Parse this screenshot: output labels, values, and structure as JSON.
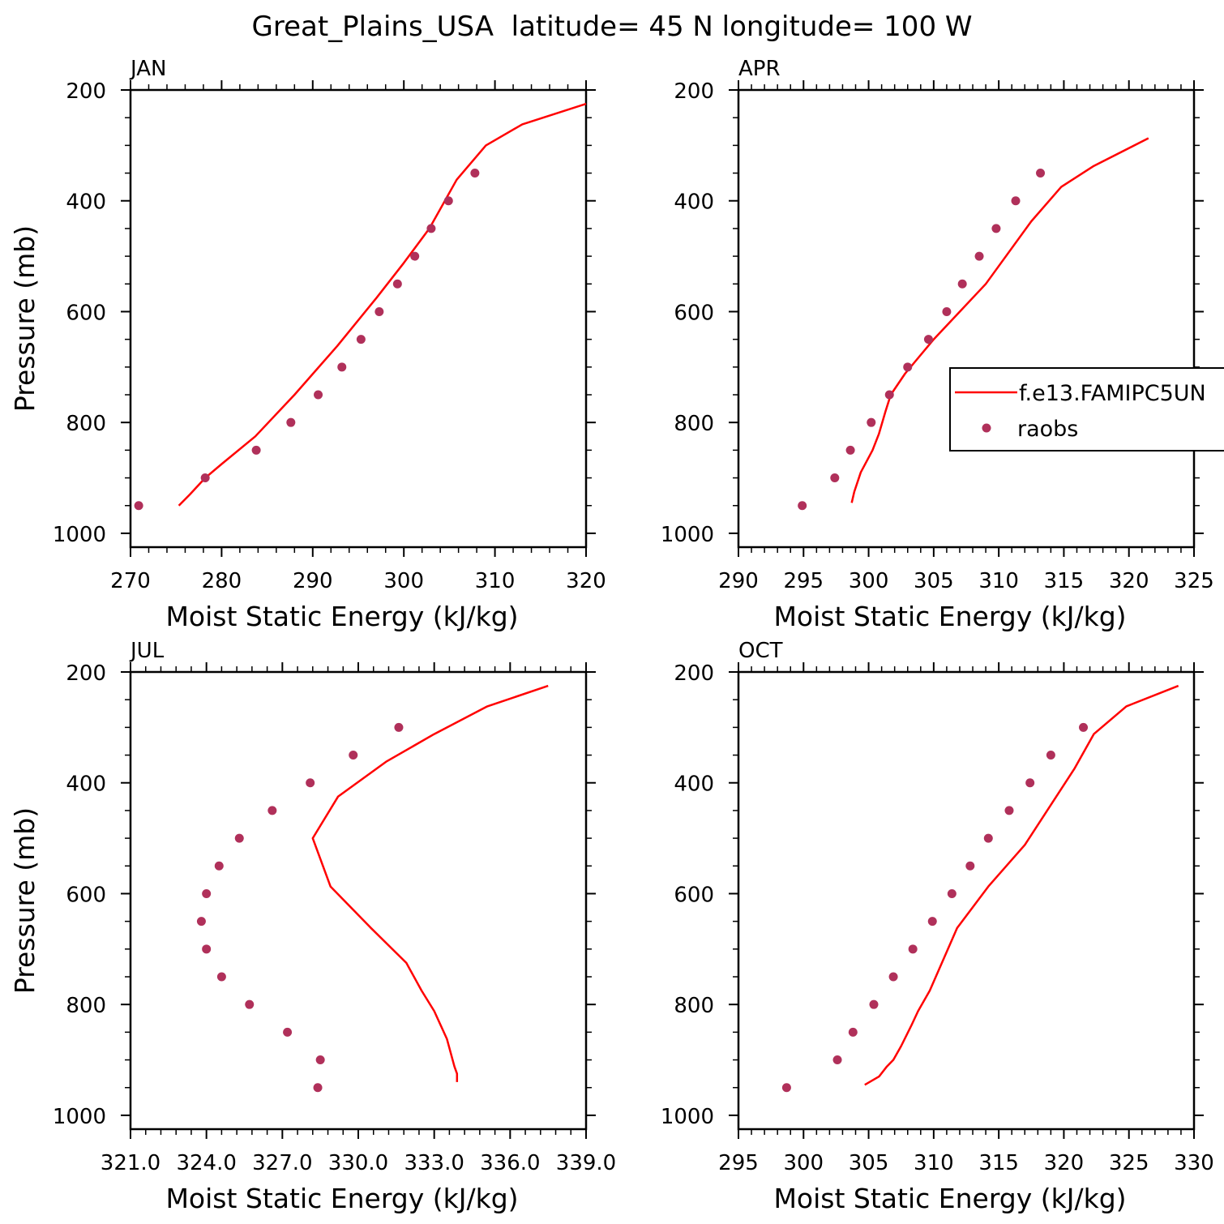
{
  "title": "Great_Plains_USA  latitude= 45 N longitude= 100 W",
  "colors": {
    "model": "#ff0000",
    "obs": "#b0305a",
    "axis": "#000000"
  },
  "legend": {
    "model_label": "f.e13.FAMIPC5UN",
    "obs_label": "raobs",
    "placement": "right-of-APR-panel"
  },
  "chart_data": [
    {
      "type": "line",
      "panel": "JAN",
      "xlabel": "Moist Static Energy (kJ/kg)",
      "ylabel": "Pressure (mb)",
      "xlim": [
        270,
        320
      ],
      "ylim": [
        1025,
        200
      ],
      "xticks": [
        270,
        280,
        290,
        300,
        310,
        320
      ],
      "xtick_labels": [
        "270",
        "280",
        "290",
        "300",
        "310",
        "320"
      ],
      "yticks": [
        200,
        400,
        600,
        800,
        1000
      ],
      "ytick_labels": [
        "200",
        "400",
        "600",
        "800",
        "1000"
      ],
      "series": [
        {
          "name": "f.e13.FAMIPC5UN",
          "kind": "line",
          "x": [
            275.3,
            276.5,
            278.2,
            280.0,
            283.7,
            288.0,
            292.7,
            297.0,
            300.0,
            302.8,
            305.8,
            309.0,
            313.0,
            320.0
          ],
          "y": [
            950,
            930,
            900,
            875,
            825,
            750,
            662,
            575,
            512,
            450,
            362,
            300,
            262,
            225
          ]
        },
        {
          "name": "raobs",
          "kind": "scatter",
          "x": [
            270.9,
            278.2,
            283.8,
            287.6,
            290.6,
            293.2,
            295.3,
            297.3,
            299.3,
            301.2,
            303.0,
            304.9,
            307.8
          ],
          "y": [
            950,
            900,
            850,
            800,
            750,
            700,
            650,
            600,
            550,
            500,
            450,
            400,
            350
          ]
        }
      ]
    },
    {
      "type": "line",
      "panel": "APR",
      "xlabel": "Moist Static Energy (kJ/kg)",
      "ylabel": "",
      "xlim": [
        290,
        325
      ],
      "ylim": [
        1025,
        200
      ],
      "xticks": [
        290,
        295,
        300,
        305,
        310,
        315,
        320,
        325
      ],
      "xtick_labels": [
        "290",
        "295",
        "300",
        "305",
        "310",
        "315",
        "320",
        "325"
      ],
      "yticks": [
        200,
        400,
        600,
        800,
        1000
      ],
      "ytick_labels": [
        "200",
        "400",
        "600",
        "800",
        "1000"
      ],
      "series": [
        {
          "name": "f.e13.FAMIPC5UN",
          "kind": "line",
          "x": [
            298.7,
            298.9,
            299.4,
            300.3,
            300.8,
            301.3,
            301.7,
            302.8,
            305.0,
            307.0,
            309.0,
            312.5,
            314.8,
            317.3,
            321.5
          ],
          "y": [
            945,
            925,
            890,
            850,
            820,
            780,
            750,
            712,
            650,
            600,
            550,
            437,
            375,
            337,
            287
          ]
        },
        {
          "name": "raobs",
          "kind": "scatter",
          "x": [
            294.9,
            297.4,
            298.6,
            300.2,
            301.6,
            303.0,
            304.6,
            306.0,
            307.2,
            308.5,
            309.8,
            311.3,
            313.2
          ],
          "y": [
            950,
            900,
            850,
            800,
            750,
            700,
            650,
            600,
            550,
            500,
            450,
            400,
            350
          ]
        }
      ]
    },
    {
      "type": "line",
      "panel": "JUL",
      "xlabel": "Moist Static Energy (kJ/kg)",
      "ylabel": "Pressure (mb)",
      "xlim": [
        321,
        339
      ],
      "ylim": [
        1025,
        200
      ],
      "xticks": [
        321,
        324,
        327,
        330,
        333,
        336,
        339
      ],
      "xtick_labels": [
        "321.0",
        "324.0",
        "327.0",
        "330.0",
        "333.0",
        "336.0",
        "339.0"
      ],
      "yticks": [
        200,
        400,
        600,
        800,
        1000
      ],
      "ytick_labels": [
        "200",
        "400",
        "600",
        "800",
        "1000"
      ],
      "series": [
        {
          "name": "f.e13.FAMIPC5UN",
          "kind": "line",
          "x": [
            333.9,
            333.9,
            333.8,
            333.5,
            333.0,
            332.5,
            331.9,
            330.5,
            328.9,
            328.2,
            329.2,
            331.1,
            333.0,
            335.1,
            337.5
          ],
          "y": [
            940,
            925,
            912,
            862,
            812,
            775,
            725,
            662,
            587,
            500,
            425,
            362,
            312,
            262,
            225
          ]
        },
        {
          "name": "raobs",
          "kind": "scatter",
          "x": [
            328.4,
            328.5,
            327.2,
            325.7,
            324.6,
            324.0,
            323.8,
            324.0,
            324.5,
            325.3,
            326.6,
            328.1,
            329.8,
            331.6
          ],
          "y": [
            950,
            900,
            850,
            800,
            750,
            700,
            650,
            600,
            550,
            500,
            450,
            400,
            350,
            300
          ]
        }
      ]
    },
    {
      "type": "line",
      "panel": "OCT",
      "xlabel": "Moist Static Energy (kJ/kg)",
      "ylabel": "",
      "xlim": [
        295,
        330
      ],
      "ylim": [
        1025,
        200
      ],
      "xticks": [
        295,
        300,
        305,
        310,
        315,
        320,
        325,
        330
      ],
      "xtick_labels": [
        "295",
        "300",
        "305",
        "310",
        "315",
        "320",
        "325",
        "330"
      ],
      "yticks": [
        200,
        400,
        600,
        800,
        1000
      ],
      "ytick_labels": [
        "200",
        "400",
        "600",
        "800",
        "1000"
      ],
      "series": [
        {
          "name": "f.e13.FAMIPC5UN",
          "kind": "line",
          "x": [
            304.7,
            305.8,
            306.4,
            306.9,
            307.5,
            308.3,
            308.8,
            309.7,
            311.8,
            314.2,
            317.0,
            320.8,
            322.3,
            324.8,
            328.8
          ],
          "y": [
            945,
            930,
            912,
            900,
            875,
            837,
            812,
            775,
            662,
            587,
            512,
            375,
            312,
            262,
            225
          ]
        },
        {
          "name": "raobs",
          "kind": "scatter",
          "x": [
            298.7,
            302.6,
            303.8,
            305.4,
            306.9,
            308.4,
            309.9,
            311.4,
            312.8,
            314.2,
            315.8,
            317.4,
            319.0,
            321.5
          ],
          "y": [
            950,
            900,
            850,
            800,
            750,
            700,
            650,
            600,
            550,
            500,
            450,
            400,
            350,
            300
          ]
        }
      ]
    }
  ]
}
